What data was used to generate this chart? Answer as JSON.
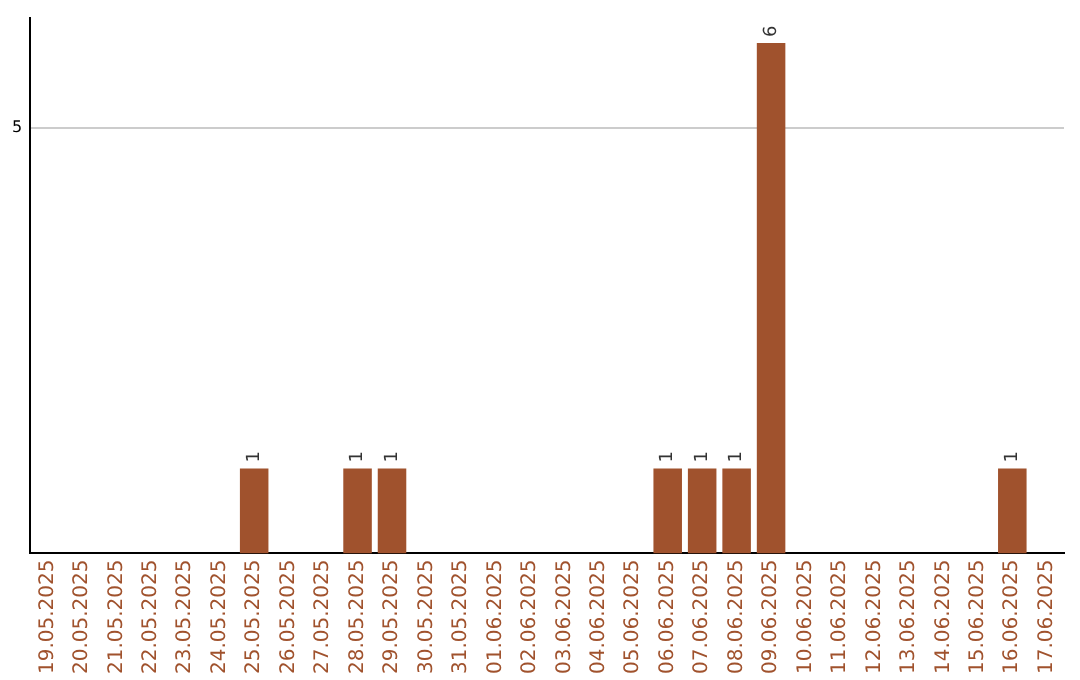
{
  "chart_data": {
    "type": "bar",
    "categories": [
      "19.05.2025",
      "20.05.2025",
      "21.05.2025",
      "22.05.2025",
      "23.05.2025",
      "24.05.2025",
      "25.05.2025",
      "26.05.2025",
      "27.05.2025",
      "28.05.2025",
      "29.05.2025",
      "30.05.2025",
      "31.05.2025",
      "01.06.2025",
      "02.06.2025",
      "03.06.2025",
      "04.06.2025",
      "05.06.2025",
      "06.06.2025",
      "07.06.2025",
      "08.06.2025",
      "09.06.2025",
      "10.06.2025",
      "11.06.2025",
      "12.06.2025",
      "13.06.2025",
      "14.06.2025",
      "15.06.2025",
      "16.06.2025",
      "17.06.2025"
    ],
    "values": [
      0,
      0,
      0,
      0,
      0,
      0,
      1,
      0,
      0,
      1,
      1,
      0,
      0,
      0,
      0,
      0,
      0,
      0,
      1,
      1,
      1,
      6,
      0,
      0,
      0,
      0,
      0,
      0,
      1,
      0
    ],
    "value_labels": [
      null,
      null,
      null,
      null,
      null,
      null,
      "1",
      null,
      null,
      "1",
      "1",
      null,
      null,
      null,
      null,
      null,
      null,
      null,
      "1",
      "1",
      "1",
      "6",
      null,
      null,
      null,
      null,
      null,
      null,
      "1",
      null
    ],
    "color": "#a0522d",
    "ylim": [
      0,
      6.3
    ],
    "yticks": [
      5
    ],
    "grid": "y",
    "legend": false
  }
}
